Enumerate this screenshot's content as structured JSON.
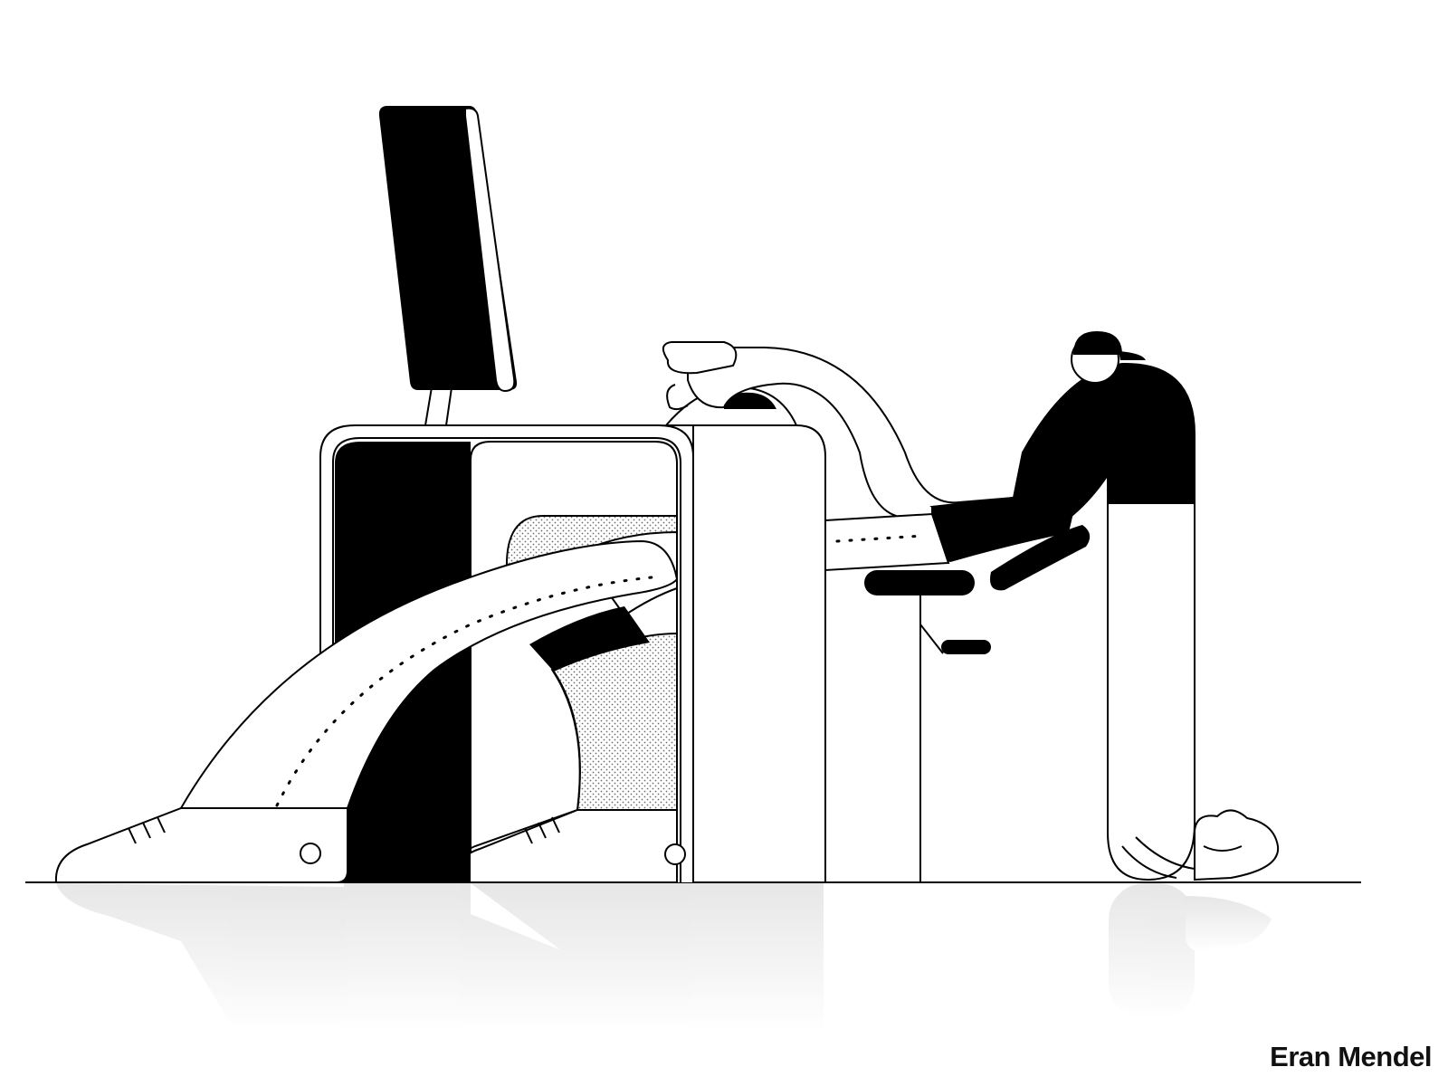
{
  "credit": {
    "artist_name": "Eran Mendel"
  },
  "palette": {
    "ink": "#000000",
    "paper": "#ffffff",
    "reflection": "#f0f0f0",
    "stipple": "#7a7a7a"
  },
  "scene": {
    "icons": [
      "monitor-icon",
      "desk-icon",
      "stool-icon",
      "person-figure",
      "cap-icon",
      "shoe-icon",
      "hand-icon"
    ]
  }
}
